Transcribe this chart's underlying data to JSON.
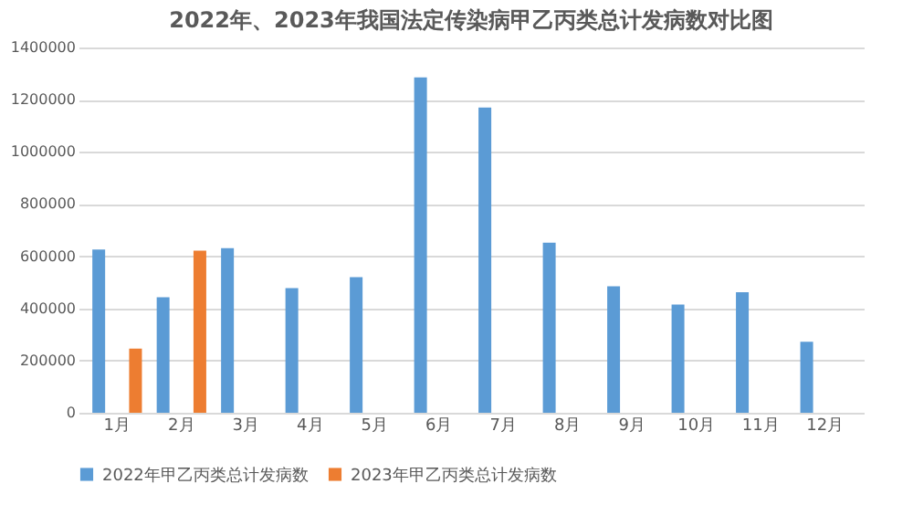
{
  "chart_data": {
    "type": "bar",
    "title": "2022年、2023年我国法定传染病甲乙丙类总计发病数对比图",
    "categories": [
      "1月",
      "2月",
      "3月",
      "4月",
      "5月",
      "6月",
      "7月",
      "8月",
      "9月",
      "10月",
      "11月",
      "12月"
    ],
    "series": [
      {
        "name": "2022年甲乙丙类总计发病数",
        "color": "#5b9bd5",
        "values": [
          626000,
          443000,
          631000,
          478000,
          520000,
          1285000,
          1170000,
          652000,
          485000,
          415000,
          462000,
          272000
        ]
      },
      {
        "name": "2023年甲乙丙类总计发病数",
        "color": "#ed7d31",
        "values": [
          246000,
          621000,
          null,
          null,
          null,
          null,
          null,
          null,
          null,
          null,
          null,
          null
        ]
      }
    ],
    "ylim": [
      0,
      1400000
    ],
    "yticks": [
      0,
      200000,
      400000,
      600000,
      800000,
      1000000,
      1200000,
      1400000
    ],
    "grid": "y",
    "legend": "bottom"
  }
}
